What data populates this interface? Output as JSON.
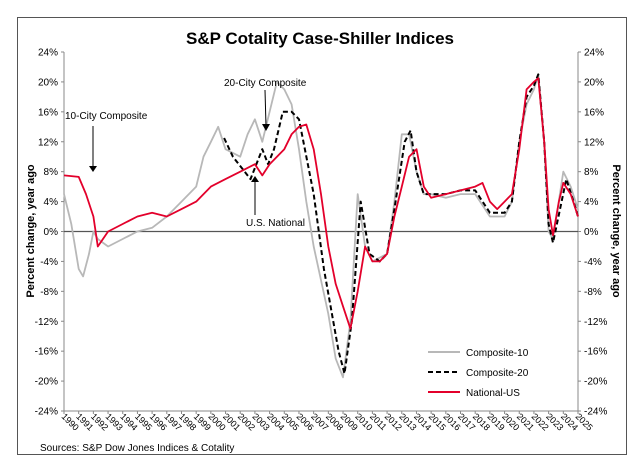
{
  "chart_data": {
    "type": "line",
    "title": "S&P Cotality Case-Shiller Indices",
    "ylabel": "Percent change, year ago",
    "y2label": "Percent change, year ago",
    "xlabel": "",
    "ylim": [
      -24,
      24
    ],
    "xlim": [
      1990,
      2025
    ],
    "yticks": [
      "24%",
      "20%",
      "16%",
      "12%",
      "8%",
      "4%",
      "0%",
      "-4%",
      "-8%",
      "-12%",
      "-16%",
      "-20%",
      "-24%"
    ],
    "xticks": [
      "1990",
      "1991",
      "1992",
      "1993",
      "1994",
      "1995",
      "1996",
      "1997",
      "1998",
      "1999",
      "2000",
      "2001",
      "2002",
      "2003",
      "2004",
      "2005",
      "2006",
      "2007",
      "2008",
      "2009",
      "2010",
      "2011",
      "2012",
      "2013",
      "2014",
      "2015",
      "2016",
      "2017",
      "2018",
      "2019",
      "2020",
      "2021",
      "2022",
      "2023",
      "2024",
      "2025"
    ],
    "grid": false,
    "legend_position": "bottom-right",
    "source": "Sources:  S&P Dow Jones Indices & Cotality",
    "annotations": [
      "10-City Composite",
      "20-City Composite",
      "U.S. National"
    ],
    "series": [
      {
        "name": "Composite-10",
        "color": "#b8b8b8",
        "style": "solid",
        "x": [
          1990,
          1990.5,
          1991,
          1991.3,
          1991.7,
          1992,
          1992.3,
          1993,
          1994,
          1995,
          1996,
          1997,
          1998,
          1999,
          1999.5,
          2000,
          2000.5,
          2001,
          2002,
          2002.5,
          2003,
          2003.5,
          2004,
          2004.5,
          2005,
          2005.5,
          2006,
          2006.5,
          2007,
          2008,
          2008.5,
          2009,
          2009.5,
          2010,
          2010.5,
          2011,
          2012,
          2012.5,
          2013,
          2013.5,
          2014,
          2014.5,
          2015,
          2016,
          2017,
          2018,
          2019,
          2020,
          2020.5,
          2021,
          2021.5,
          2022,
          2022.3,
          2022.7,
          2023,
          2023.3,
          2024,
          2024.5,
          2025
        ],
        "y": [
          5,
          1,
          -5,
          -6,
          -3,
          0,
          -1,
          -2,
          -1,
          0,
          0.5,
          2,
          4,
          6,
          10,
          12,
          14,
          11,
          10,
          13,
          15,
          12,
          16,
          20,
          19,
          17,
          11,
          4,
          -2,
          -11,
          -17,
          -19.5,
          -12,
          5,
          -2,
          -4,
          -3,
          4,
          13,
          13,
          8,
          5,
          5,
          4.5,
          5,
          5,
          2,
          2,
          4,
          12,
          17,
          19,
          21,
          12,
          0,
          -1,
          8,
          6,
          3
        ]
      },
      {
        "name": "Composite-20",
        "color": "#000000",
        "style": "dashed",
        "x": [
          2000.9,
          2001.5,
          2002.7,
          2003.5,
          2003.9,
          2004.3,
          2004.9,
          2005.5,
          2006,
          2007,
          2007.7,
          2008.7,
          2009.1,
          2009.6,
          2010.2,
          2010.8,
          2011.5,
          2012,
          2012.5,
          2013.2,
          2013.6,
          2014,
          2014.5,
          2015,
          2016,
          2017,
          2018,
          2019,
          2020,
          2020.5,
          2021,
          2021.5,
          2022,
          2022.3,
          2022.7,
          2023,
          2023.3,
          2024.2,
          2024.7,
          2025
        ],
        "y": [
          12.5,
          10,
          7,
          11,
          9,
          11,
          16,
          16,
          15,
          5,
          -5,
          -16,
          -19,
          -12,
          4,
          -3,
          -4,
          -3,
          3,
          12,
          13.5,
          8,
          5,
          5,
          5,
          5.5,
          5.5,
          2.5,
          2.5,
          4,
          12,
          18,
          19.5,
          21,
          12,
          1,
          -1.5,
          7,
          4,
          2
        ]
      },
      {
        "name": "National-US",
        "color": "#e3002b",
        "style": "solid",
        "x": [
          1990,
          1991,
          1991.5,
          1992,
          1992.3,
          1993,
          1994,
          1995,
          1996,
          1997,
          1998,
          1999,
          2000,
          2001,
          2002,
          2003,
          2003.5,
          2004,
          2005,
          2005.5,
          2006,
          2006.5,
          2007,
          2007.5,
          2008,
          2008.5,
          2009,
          2009.5,
          2010,
          2010.5,
          2011,
          2011.5,
          2012,
          2012.5,
          2013,
          2013.5,
          2014,
          2014.5,
          2015,
          2016,
          2017,
          2018,
          2018.5,
          2019,
          2019.5,
          2020,
          2020.5,
          2021,
          2021.5,
          2022,
          2022.3,
          2022.7,
          2023,
          2023.3,
          2023.7,
          2024,
          2024.5,
          2025
        ],
        "y": [
          7.5,
          7.3,
          5,
          2,
          -2,
          0,
          1,
          2,
          2.5,
          2,
          3,
          4,
          6,
          7,
          8,
          9,
          7.5,
          9,
          11,
          13,
          14,
          14.3,
          11,
          5,
          -2,
          -7,
          -10,
          -13,
          -8,
          -2,
          -4,
          -4,
          -3,
          2,
          6,
          10,
          11,
          6,
          4.5,
          5,
          5.5,
          6,
          6.5,
          4,
          3,
          4,
          5,
          11,
          19,
          20,
          20.5,
          12,
          3,
          -0.5,
          4,
          6.5,
          5,
          2
        ]
      }
    ]
  }
}
